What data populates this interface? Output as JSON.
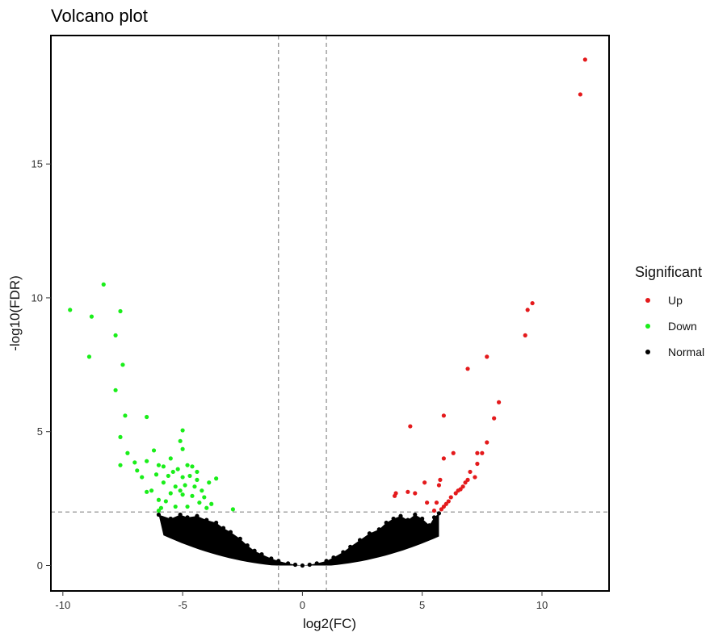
{
  "chart_data": {
    "type": "scatter",
    "title": "Volcano plot",
    "xlabel": "log2(FC)",
    "ylabel": "-log10(FDR)",
    "xlim": [
      -10.5,
      12.8
    ],
    "ylim": [
      -0.95,
      19.8
    ],
    "x_ticks": [
      -10,
      -5,
      0,
      5,
      10
    ],
    "y_ticks": [
      0,
      5,
      10,
      15
    ],
    "grid": false,
    "threshold_lines": {
      "fdr": 2,
      "fc": [
        -1,
        1
      ],
      "style": "dashed"
    },
    "legend": {
      "title": "Significant",
      "placement": "right"
    },
    "series": [
      {
        "name": "Up",
        "color": "#e41a1c",
        "points": [
          [
            11.8,
            18.9
          ],
          [
            11.6,
            17.6
          ],
          [
            9.6,
            9.8
          ],
          [
            9.4,
            9.55
          ],
          [
            9.3,
            8.6
          ],
          [
            7.7,
            7.8
          ],
          [
            6.9,
            7.35
          ],
          [
            8.2,
            6.1
          ],
          [
            8.0,
            5.5
          ],
          [
            5.9,
            5.6
          ],
          [
            4.5,
            5.2
          ],
          [
            7.7,
            4.6
          ],
          [
            7.5,
            4.2
          ],
          [
            7.3,
            4.2
          ],
          [
            7.3,
            3.8
          ],
          [
            6.3,
            4.2
          ],
          [
            5.9,
            4.0
          ],
          [
            7.2,
            3.3
          ],
          [
            7.0,
            3.5
          ],
          [
            6.9,
            3.2
          ],
          [
            6.8,
            3.1
          ],
          [
            6.7,
            2.95
          ],
          [
            6.6,
            2.85
          ],
          [
            6.5,
            2.8
          ],
          [
            6.4,
            2.7
          ],
          [
            6.2,
            2.55
          ],
          [
            6.1,
            2.4
          ],
          [
            6.0,
            2.3
          ],
          [
            5.9,
            2.2
          ],
          [
            5.8,
            2.1
          ],
          [
            5.75,
            3.2
          ],
          [
            5.7,
            3.0
          ],
          [
            5.6,
            2.35
          ],
          [
            5.2,
            2.35
          ],
          [
            5.1,
            3.1
          ],
          [
            4.7,
            2.7
          ],
          [
            4.4,
            2.75
          ],
          [
            3.9,
            2.7
          ],
          [
            3.85,
            2.6
          ],
          [
            5.5,
            2.05
          ]
        ]
      },
      {
        "name": "Down",
        "color": "#1aee1a",
        "points": [
          [
            -8.3,
            10.5
          ],
          [
            -9.7,
            9.55
          ],
          [
            -7.6,
            9.5
          ],
          [
            -8.8,
            9.3
          ],
          [
            -7.8,
            8.6
          ],
          [
            -8.9,
            7.8
          ],
          [
            -7.5,
            7.5
          ],
          [
            -7.8,
            6.55
          ],
          [
            -7.4,
            5.6
          ],
          [
            -6.5,
            5.55
          ],
          [
            -5.0,
            5.05
          ],
          [
            -7.6,
            4.8
          ],
          [
            -5.1,
            4.65
          ],
          [
            -6.2,
            4.3
          ],
          [
            -5.0,
            4.35
          ],
          [
            -7.3,
            4.2
          ],
          [
            -5.5,
            4.0
          ],
          [
            -6.5,
            3.9
          ],
          [
            -7.0,
            3.85
          ],
          [
            -7.6,
            3.75
          ],
          [
            -6.0,
            3.75
          ],
          [
            -5.8,
            3.7
          ],
          [
            -4.8,
            3.75
          ],
          [
            -4.6,
            3.7
          ],
          [
            -5.2,
            3.6
          ],
          [
            -4.4,
            3.5
          ],
          [
            -6.9,
            3.55
          ],
          [
            -6.1,
            3.4
          ],
          [
            -5.6,
            3.35
          ],
          [
            -5.4,
            3.5
          ],
          [
            -5.0,
            3.3
          ],
          [
            -4.7,
            3.35
          ],
          [
            -3.6,
            3.25
          ],
          [
            -6.7,
            3.3
          ],
          [
            -5.8,
            3.1
          ],
          [
            -4.4,
            3.2
          ],
          [
            -3.9,
            3.1
          ],
          [
            -5.3,
            2.95
          ],
          [
            -4.9,
            3.0
          ],
          [
            -4.5,
            2.95
          ],
          [
            -6.3,
            2.8
          ],
          [
            -6.5,
            2.75
          ],
          [
            -5.1,
            2.8
          ],
          [
            -4.2,
            2.8
          ],
          [
            -5.5,
            2.7
          ],
          [
            -5.0,
            2.65
          ],
          [
            -4.6,
            2.6
          ],
          [
            -4.1,
            2.55
          ],
          [
            -6.0,
            2.45
          ],
          [
            -5.7,
            2.4
          ],
          [
            -4.3,
            2.35
          ],
          [
            -3.8,
            2.3
          ],
          [
            -5.9,
            2.15
          ],
          [
            -5.3,
            2.2
          ],
          [
            -4.8,
            2.2
          ],
          [
            -4.0,
            2.15
          ],
          [
            -6.0,
            2.05
          ],
          [
            -2.9,
            2.1
          ]
        ]
      },
      {
        "name": "Normal",
        "color": "#000000",
        "points": [
          [
            -6.0,
            1.9
          ],
          [
            -5.5,
            1.75
          ],
          [
            -5.1,
            1.9
          ],
          [
            -4.8,
            1.8
          ],
          [
            -4.4,
            1.85
          ],
          [
            -4.0,
            1.7
          ],
          [
            -3.6,
            1.6
          ],
          [
            -3.3,
            1.4
          ],
          [
            -3.0,
            1.25
          ],
          [
            -2.6,
            1.0
          ],
          [
            -2.3,
            0.75
          ],
          [
            -2.0,
            0.55
          ],
          [
            -1.7,
            0.42
          ],
          [
            -1.3,
            0.26
          ],
          [
            -1.0,
            0.17
          ],
          [
            -0.6,
            0.08
          ],
          [
            -0.3,
            0.03
          ],
          [
            0.0,
            0.0
          ],
          [
            0.3,
            0.03
          ],
          [
            0.6,
            0.08
          ],
          [
            1.0,
            0.17
          ],
          [
            1.3,
            0.3
          ],
          [
            1.7,
            0.5
          ],
          [
            2.0,
            0.7
          ],
          [
            2.4,
            0.95
          ],
          [
            2.8,
            1.2
          ],
          [
            3.2,
            1.35
          ],
          [
            3.5,
            1.6
          ],
          [
            3.8,
            1.75
          ],
          [
            4.1,
            1.85
          ],
          [
            4.4,
            1.7
          ],
          [
            4.7,
            1.9
          ],
          [
            5.0,
            1.75
          ],
          [
            5.3,
            1.5
          ],
          [
            5.5,
            1.8
          ],
          [
            5.7,
            1.95
          ]
        ]
      }
    ]
  }
}
